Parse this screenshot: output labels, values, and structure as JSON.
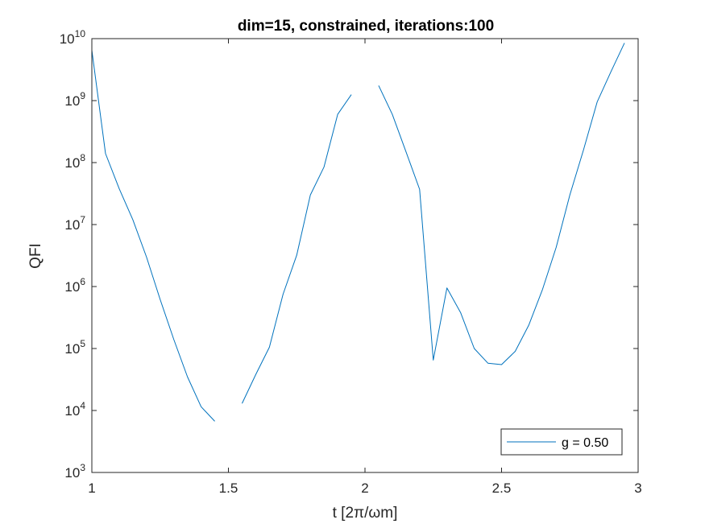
{
  "chart_data": {
    "type": "line",
    "title": "dim=15, constrained, iterations:100",
    "xlabel": "t [2π/ωm]",
    "ylabel": "QFI",
    "xlim": [
      1,
      3
    ],
    "ylim": [
      1000,
      10000000000
    ],
    "yscale": "log",
    "xticks": [
      1,
      1.5,
      2,
      2.5,
      3
    ],
    "xtick_labels": [
      "1",
      "1.5",
      "2",
      "2.5",
      "3"
    ],
    "yticks": [
      1000,
      10000,
      100000,
      1000000,
      10000000,
      100000000,
      1000000000,
      10000000000
    ],
    "ytick_base": "10",
    "ytick_exponents": [
      "3",
      "4",
      "5",
      "6",
      "7",
      "8",
      "9",
      "10"
    ],
    "legend": {
      "entries": [
        "g = 0.50"
      ],
      "location": "bottom-right"
    },
    "colors": {
      "series": "#0072BD",
      "axes": "#262626"
    },
    "series": [
      {
        "name": "g = 0.50",
        "segments": [
          [
            [
              1.0,
              6500000000
            ],
            [
              1.05,
              140000000
            ],
            [
              1.1,
              38000000
            ],
            [
              1.15,
              12000000
            ],
            [
              1.2,
              3000000
            ],
            [
              1.25,
              620000
            ],
            [
              1.3,
              140000
            ],
            [
              1.35,
              35000
            ],
            [
              1.4,
              11500
            ],
            [
              1.45,
              6700
            ]
          ],
          [
            [
              1.55,
              13000
            ],
            [
              1.6,
              38000
            ],
            [
              1.65,
              105000
            ],
            [
              1.7,
              750000
            ],
            [
              1.75,
              3200000
            ],
            [
              1.8,
              30000000
            ],
            [
              1.85,
              85000000
            ],
            [
              1.9,
              600000000
            ],
            [
              1.95,
              1250000000
            ]
          ],
          [
            [
              2.05,
              1750000000
            ],
            [
              2.1,
              600000000
            ],
            [
              2.15,
              150000000
            ],
            [
              2.2,
              37000000
            ],
            [
              2.25,
              65000
            ],
            [
              2.3,
              950000
            ],
            [
              2.35,
              380000
            ],
            [
              2.4,
              100000
            ],
            [
              2.45,
              58000
            ],
            [
              2.5,
              55000
            ],
            [
              2.55,
              90000
            ],
            [
              2.6,
              240000
            ],
            [
              2.65,
              900000
            ],
            [
              2.7,
              4300000
            ],
            [
              2.75,
              30000000
            ],
            [
              2.8,
              160000000
            ],
            [
              2.85,
              950000000
            ],
            [
              2.9,
              2900000000
            ],
            [
              2.95,
              8500000000
            ]
          ]
        ]
      }
    ]
  }
}
